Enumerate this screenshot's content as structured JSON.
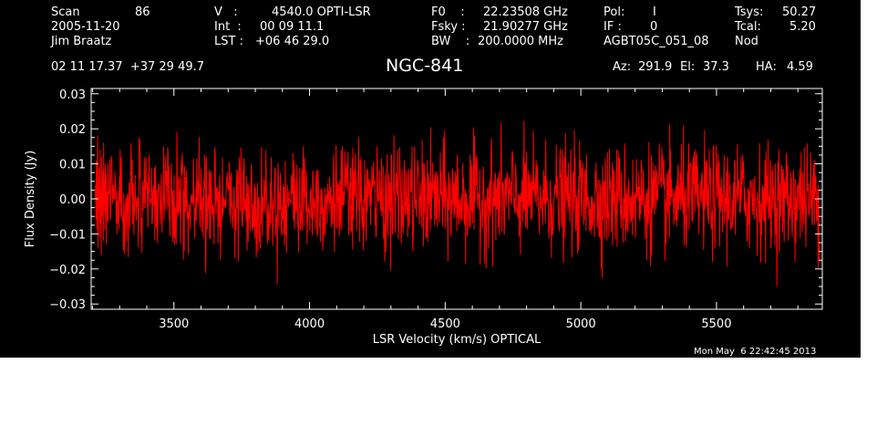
{
  "header": {
    "scan_label": "Scan",
    "scan_number": "86",
    "date": "2005-11-20",
    "observer": "Jim Braatz",
    "v_label": "V   :",
    "v_value": "4540.0 OPTI-LSR",
    "int_label": "Int  :",
    "int_value": "00 09 11.1",
    "lst_label": "LST :",
    "lst_value": "+06 46 29.0",
    "f0_label": "F0    :",
    "f0_value": "22.23508 GHz",
    "fsky_label": "Fsky :",
    "fsky_value": "21.90277 GHz",
    "bw_label": "BW    :",
    "bw_value": "200.0000 MHz",
    "pol_label": "Pol:",
    "pol_value": "I",
    "if_label": "IF :",
    "if_value": "0",
    "project": "AGBT05C_051_08",
    "tsys_label": "Tsys:",
    "tsys_value": "50.27",
    "tcal_label": "Tcal:",
    "tcal_value": "5.20",
    "mode": "Nod",
    "coords": "02 11 17.37  +37 29 49.7",
    "source": "NGC-841",
    "az_label": "Az:",
    "az_value": "291.9",
    "el_label": "El:",
    "el_value": "37.3",
    "ha_label": "HA:",
    "ha_value": "4.59",
    "timestamp": "Mon May  6 22:42:45 2013"
  },
  "chart_data": {
    "type": "line",
    "title": "NGC-841",
    "xlabel": "LSR Velocity (km/s) OPTICAL",
    "ylabel": "Flux Density (Jy)",
    "xlim": [
      3195,
      5890
    ],
    "ylim": [
      -0.0315,
      0.0315
    ],
    "x_ticks": [
      3500,
      4000,
      4500,
      5000,
      5500
    ],
    "x_tick_labels": [
      "3500",
      "4000",
      "4500",
      "5000",
      "5500"
    ],
    "y_ticks": [
      -0.03,
      -0.02,
      -0.01,
      0.0,
      0.01,
      0.02,
      0.03
    ],
    "y_tick_labels": [
      "−0.03",
      "−0.02",
      "−0.01",
      "0.00",
      "0.01",
      "0.02",
      "0.03"
    ],
    "grid": false,
    "background_color": "#000000",
    "axes_color": "#ffffff",
    "series": [
      {
        "color": "#ff0000",
        "x_start": 3210,
        "x_end": 5880,
        "mean": 0.0,
        "rms": 0.0075,
        "y_min_observed": -0.025,
        "y_max_observed": 0.024,
        "sample_values": [
          0.0,
          0.004,
          -0.006,
          0.011,
          -0.009,
          0.002,
          0.018,
          -0.014,
          0.006,
          -0.003,
          0.009,
          -0.011,
          0.014,
          -0.007,
          0.003,
          -0.016,
          0.012,
          0.001,
          -0.005,
          0.008,
          -0.012,
          0.016,
          -0.002,
          0.005,
          -0.009,
          0.01,
          -0.004,
          0.007,
          -0.013,
          0.002
        ]
      }
    ]
  },
  "colors": {
    "background": "#000000",
    "text": "#ffffff",
    "trace": "#ff0000"
  }
}
